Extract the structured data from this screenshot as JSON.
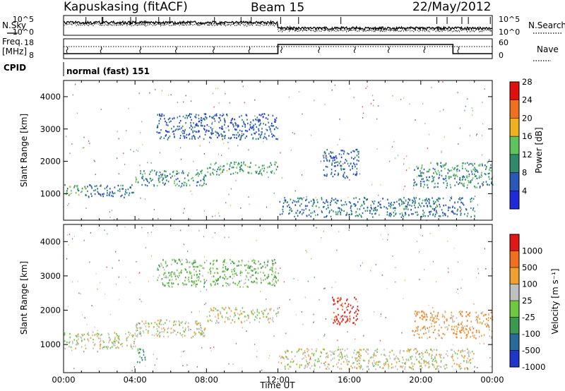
{
  "header": {
    "station": "Kapuskasing (fitACF)",
    "beam": "Beam 15",
    "date": "22/May/2012"
  },
  "top_panels": {
    "nsky_label": "N.Sky",
    "nsearch_label": "N.Search",
    "count_ticks": [
      "10^5",
      "10^0"
    ],
    "freq_label_1": "Freq.",
    "freq_label_2": "[MHz]",
    "freq_ticks": [
      "18",
      "8"
    ],
    "nave_label": "Nave",
    "nave_ticks": [
      "60",
      "0"
    ],
    "cpid_label": "CPID",
    "cpid_value": "normal (fast) 151"
  },
  "chart_data": [
    {
      "type": "heatmap",
      "name": "power",
      "ylabel": "Slant Range [km]",
      "xlabel": "",
      "x_range": [
        0,
        24
      ],
      "ylim": [
        180,
        4500
      ],
      "y_ticks": [
        "1000",
        "2000",
        "3000",
        "4000"
      ],
      "colorbar": {
        "label": "Power [dB]",
        "ticks": [
          "4",
          "8",
          "12",
          "16",
          "20",
          "24",
          "28"
        ],
        "colors": [
          "#1e2bd8",
          "#2a58b8",
          "#2f8a6c",
          "#5fc35f",
          "#f0b020",
          "#f07020",
          "#e01010"
        ]
      },
      "regions": [
        {
          "t": [
            0.0,
            1.3
          ],
          "r": [
            950,
            1300
          ],
          "level": 2.5
        },
        {
          "t": [
            1.3,
            4.0
          ],
          "r": [
            900,
            1300
          ],
          "level": 1.5
        },
        {
          "t": [
            4.0,
            8.0
          ],
          "r": [
            1250,
            1750
          ],
          "level": 2
        },
        {
          "t": [
            8.0,
            12.0
          ],
          "r": [
            1600,
            2000
          ],
          "level": 2.5
        },
        {
          "t": [
            5.2,
            12.0
          ],
          "r": [
            2700,
            3500
          ],
          "level": 1
        },
        {
          "t": [
            14.5,
            16.5
          ],
          "r": [
            1500,
            2400
          ],
          "level": 1
        },
        {
          "t": [
            19.5,
            24.0
          ],
          "r": [
            1200,
            2000
          ],
          "level": 2
        },
        {
          "t": [
            12.0,
            23.0
          ],
          "r": [
            300,
            900
          ],
          "level": 1.5
        }
      ]
    },
    {
      "type": "heatmap",
      "name": "velocity",
      "ylabel": "Slant Range [km]",
      "xlabel": "Time UT",
      "x_range": [
        0,
        24
      ],
      "x_ticks": [
        "00:00",
        "04:00",
        "08:00",
        "12:00",
        "16:00",
        "20:00",
        "00:00"
      ],
      "ylim": [
        180,
        4500
      ],
      "y_ticks": [
        "1000",
        "2000",
        "3000",
        "4000"
      ],
      "colorbar": {
        "label": "Velocity [m s⁻¹]",
        "ticks": [
          "1000",
          "500",
          "100",
          "25",
          "-25",
          "-100",
          "-500",
          "-1000"
        ],
        "colors": [
          "#2036c8",
          "#2a6a9a",
          "#3a9a50",
          "#70c840",
          "#c0c0c0",
          "#f0a030",
          "#f07020",
          "#e01818"
        ]
      },
      "regions": [
        {
          "t": [
            0.0,
            4.0
          ],
          "r": [
            900,
            1400
          ],
          "level": 4
        },
        {
          "t": [
            4.0,
            8.0
          ],
          "r": [
            1250,
            1750
          ],
          "level": 4
        },
        {
          "t": [
            8.0,
            12.0
          ],
          "r": [
            1650,
            2100
          ],
          "level": 4
        },
        {
          "t": [
            5.2,
            12.0
          ],
          "r": [
            2700,
            3500
          ],
          "level": 3
        },
        {
          "t": [
            15.0,
            16.5
          ],
          "r": [
            1600,
            2400
          ],
          "level": 7
        },
        {
          "t": [
            19.5,
            24.0
          ],
          "r": [
            1200,
            2000
          ],
          "level": 5
        },
        {
          "t": [
            4.0,
            4.6
          ],
          "r": [
            500,
            900
          ],
          "level": 2
        },
        {
          "t": [
            12.0,
            23.0
          ],
          "r": [
            300,
            900
          ],
          "level": 4
        }
      ]
    }
  ]
}
